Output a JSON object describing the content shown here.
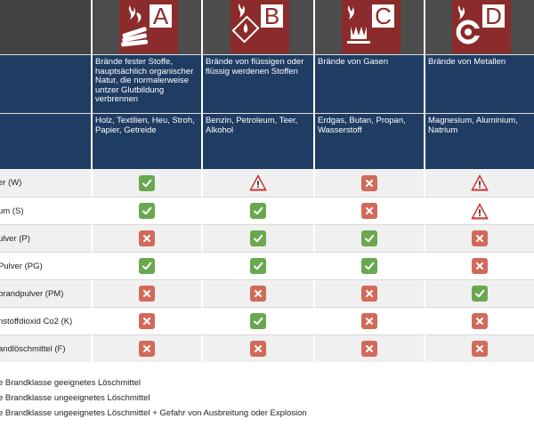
{
  "classes": [
    {
      "letter": "A",
      "icon": "burning-wood-icon",
      "description": "Brände fester Stoffe, hauptsächlich organischer Natur, die normalerweise untzer Glutbildung verbrennen",
      "materials": "Holz, Textilien, Heu, Stroh, Papier, Getreide"
    },
    {
      "letter": "B",
      "icon": "burning-liquid-icon",
      "description": "Brände von flüssigen oder flüssig werdenen Stoffen",
      "materials": "Benzin, Petroleum, Teer, Alkohol"
    },
    {
      "letter": "C",
      "icon": "burning-gas-icon",
      "description": "Brände von Gasen",
      "materials": "Erdgas, Butan, Propan, Wasserstoff"
    },
    {
      "letter": "D",
      "icon": "burning-metal-icon",
      "description": "Brände von Metallen",
      "materials": "Magnesium, Aluminium, Natrium"
    }
  ],
  "agents": [
    {
      "label": "er (W)",
      "ratings": [
        "ok",
        "warn",
        "no",
        "warn"
      ]
    },
    {
      "label": "um (S)",
      "ratings": [
        "ok",
        "ok",
        "no",
        "warn"
      ]
    },
    {
      "label": "ulver (P)",
      "ratings": [
        "no",
        "ok",
        "ok",
        "no"
      ]
    },
    {
      "label": "Pulver (PG)",
      "ratings": [
        "ok",
        "ok",
        "ok",
        "no"
      ]
    },
    {
      "label": "brandpulver (PM)",
      "ratings": [
        "no",
        "no",
        "no",
        "ok"
      ]
    },
    {
      "label": "nstoffdioxid Co2 (K)",
      "ratings": [
        "no",
        "ok",
        "no",
        "no"
      ]
    },
    {
      "label": "andlöschmittel (F)",
      "ratings": [
        "no",
        "no",
        "no",
        "no"
      ]
    }
  ],
  "legend": [
    "e Brandklasse geeignetes Löschmittel",
    "e Brandklasse ungeeignetes Löschmittel",
    "e Brandklasse ungeeignetes Löschmittel + Gefahr von Ausbreitung oder Explosion"
  ],
  "colors": {
    "header_dark": "#4d4d4d",
    "header_navy": "#1f3c63",
    "sign_red": "#8c2b2b",
    "ok_green": "#6aa84f",
    "no_red": "#d26a5a",
    "warn_red": "#d9534f"
  }
}
